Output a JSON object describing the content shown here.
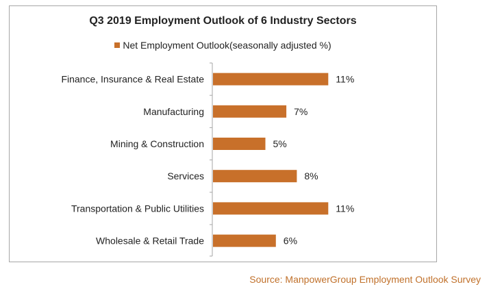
{
  "chart_data": {
    "type": "bar",
    "orientation": "horizontal",
    "title": "Q3 2019 Employment Outlook of 6 Industry Sectors",
    "legend": "top",
    "series": [
      {
        "name": "Net Employment Outlook(seasonally adjusted %)",
        "color": "#c8702a",
        "values": [
          11,
          7,
          5,
          8,
          11,
          6
        ]
      }
    ],
    "categories": [
      "Finance, Insurance & Real Estate",
      "Manufacturing",
      "Mining & Construction",
      "Services",
      "Transportation & Public Utilities",
      "Wholesale & Retail Trade"
    ],
    "data_labels": [
      "11%",
      "7%",
      "5%",
      "8%",
      "11%",
      "6%"
    ],
    "xlim": [
      0,
      12
    ],
    "grid": false
  },
  "source": "Source: ManpowerGroup Employment Outlook Survey"
}
